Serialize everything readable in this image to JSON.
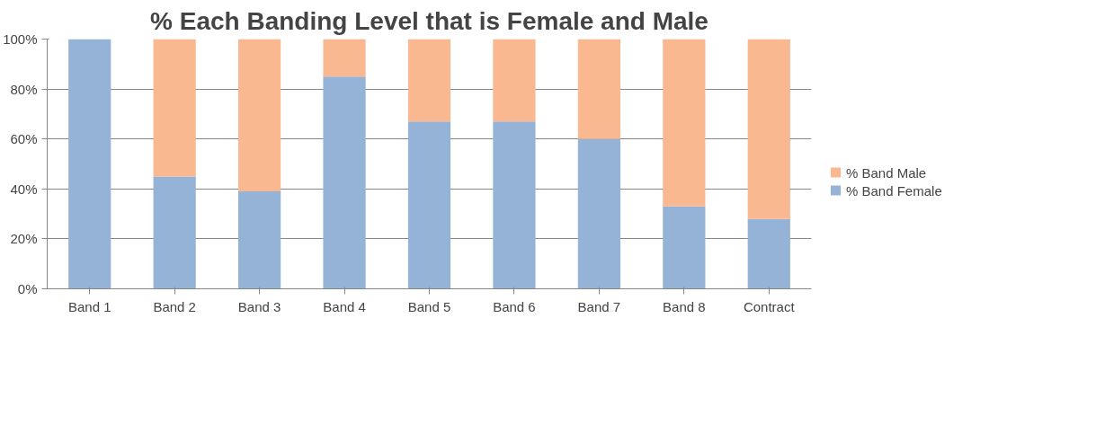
{
  "chart_data": {
    "type": "bar",
    "title": "% Each Banding Level that is Female and Male",
    "categories": [
      "Band 1",
      "Band 2",
      "Band 3",
      "Band 4",
      "Band 5",
      "Band 6",
      "Band 7",
      "Band 8",
      "Contract"
    ],
    "stacked": true,
    "series": [
      {
        "name": "% Band Female",
        "color": "#95b3d7",
        "values": [
          100,
          45,
          39,
          85,
          67,
          67,
          60,
          33,
          28
        ]
      },
      {
        "name": "% Band Male",
        "color": "#fab891",
        "values": [
          0,
          55,
          61,
          15,
          33,
          33,
          40,
          67,
          72
        ]
      }
    ],
    "ylim": [
      0,
      100
    ],
    "yticks": [
      {
        "value": 0,
        "label": "0%"
      },
      {
        "value": 20,
        "label": "20%"
      },
      {
        "value": 40,
        "label": "40%"
      },
      {
        "value": 60,
        "label": "60%"
      },
      {
        "value": 80,
        "label": "80%"
      },
      {
        "value": 100,
        "label": "100%"
      }
    ],
    "grid": "y",
    "legend": "right"
  }
}
